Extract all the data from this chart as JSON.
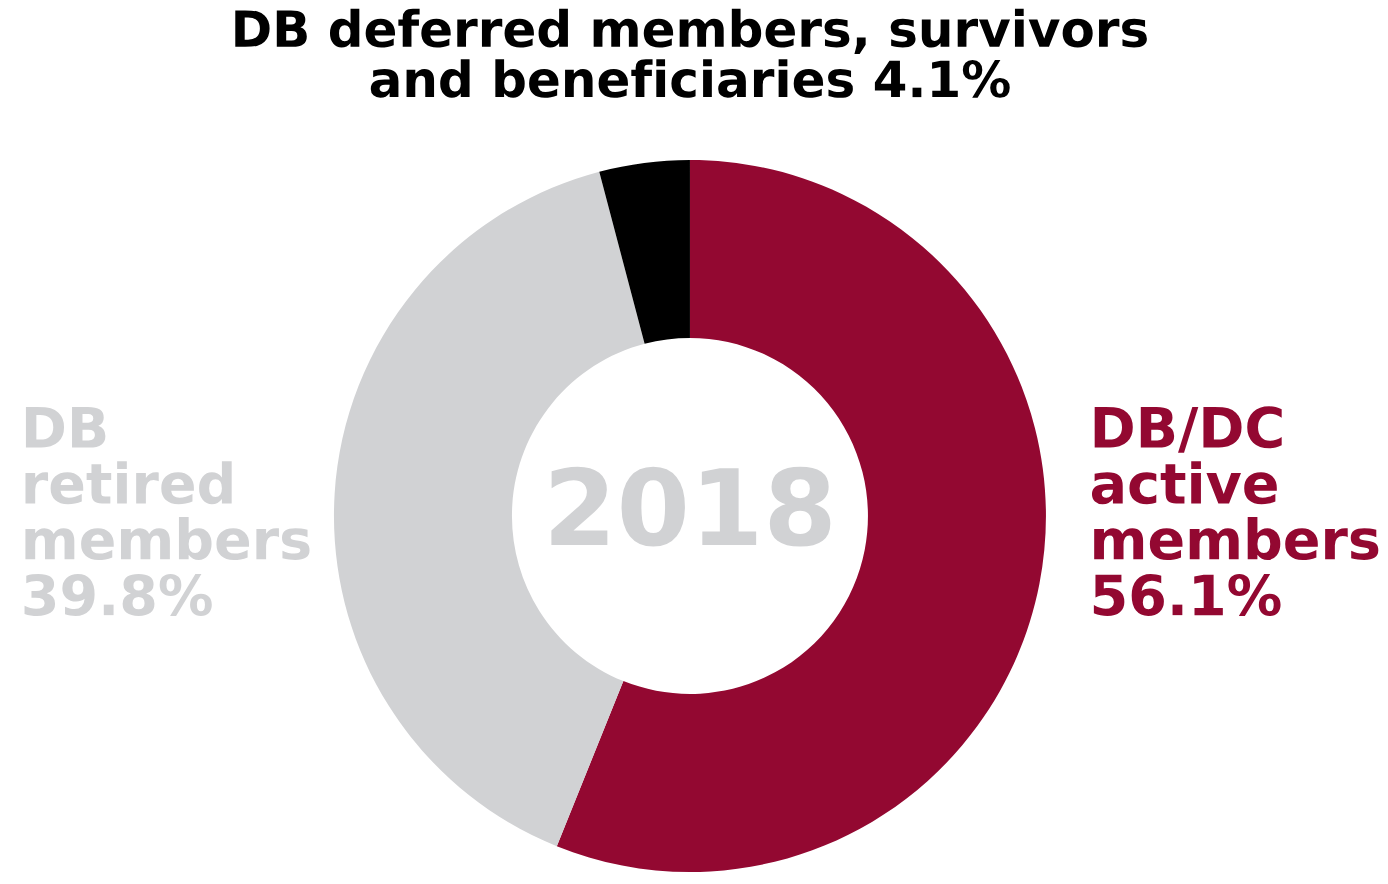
{
  "chart_data": {
    "type": "donut",
    "categories": [
      "DB/DC\nactive\nmembers",
      "DB\nretired\nmembers",
      "DB deferred members, survivors\nand beneficiaries"
    ],
    "values": [
      56.1,
      39.8,
      4.1
    ],
    "value_labels": [
      "56.1%",
      "39.8%",
      "4.1%"
    ],
    "colors": [
      "#930831",
      "#d1d2d4",
      "#000000"
    ],
    "annotations": [
      "2018"
    ],
    "legend": false
  }
}
